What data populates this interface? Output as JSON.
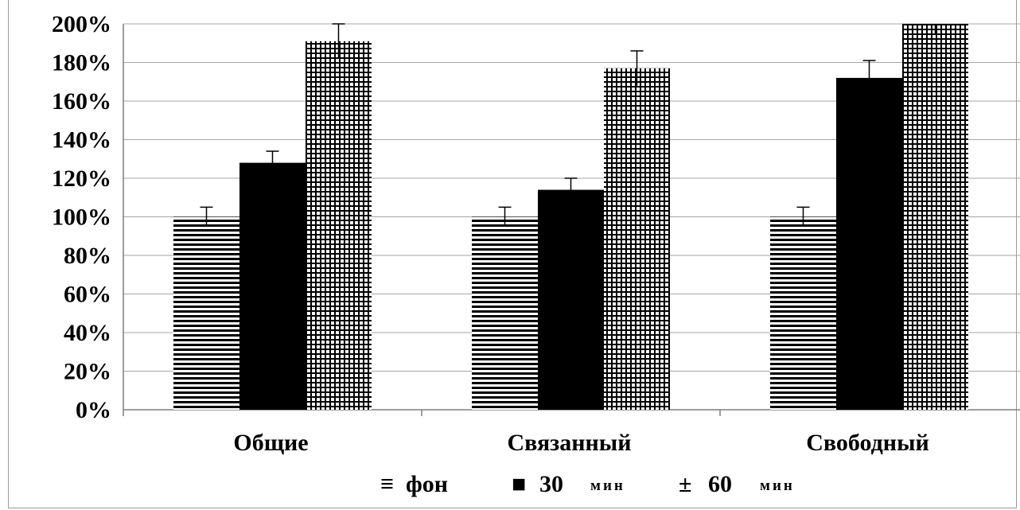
{
  "chart_data": {
    "type": "bar",
    "categories": [
      "Общие",
      "Связанный",
      "Свободный"
    ],
    "series": [
      {
        "name": "фон",
        "values": [
          100,
          100,
          100
        ],
        "errors": [
          5,
          5,
          5
        ],
        "pattern": "horizontal-lines"
      },
      {
        "name": "30 мин",
        "values": [
          128,
          114,
          172
        ],
        "errors": [
          6,
          6,
          9
        ],
        "pattern": "solid"
      },
      {
        "name": "60 мин",
        "values": [
          191,
          177,
          200
        ],
        "errors": [
          9,
          9,
          5
        ],
        "pattern": "grid"
      }
    ],
    "y_ticks": [
      "0%",
      "20%",
      "40%",
      "60%",
      "80%",
      "100%",
      "120%",
      "140%",
      "160%",
      "180%",
      "200%"
    ],
    "ylim": [
      0,
      200
    ],
    "y_unit": "%",
    "grid": true,
    "legend": {
      "placement": "bottom",
      "items": [
        {
          "symbol": "≡",
          "label": "фон",
          "unit": ""
        },
        {
          "symbol": "■",
          "label": "30",
          "unit": "мин"
        },
        {
          "symbol": "±",
          "label": "60",
          "unit": "мин"
        }
      ]
    },
    "colors": {
      "bar": "#000000",
      "grid": "#a6a6a6",
      "axis": "#7f7f7f"
    }
  }
}
